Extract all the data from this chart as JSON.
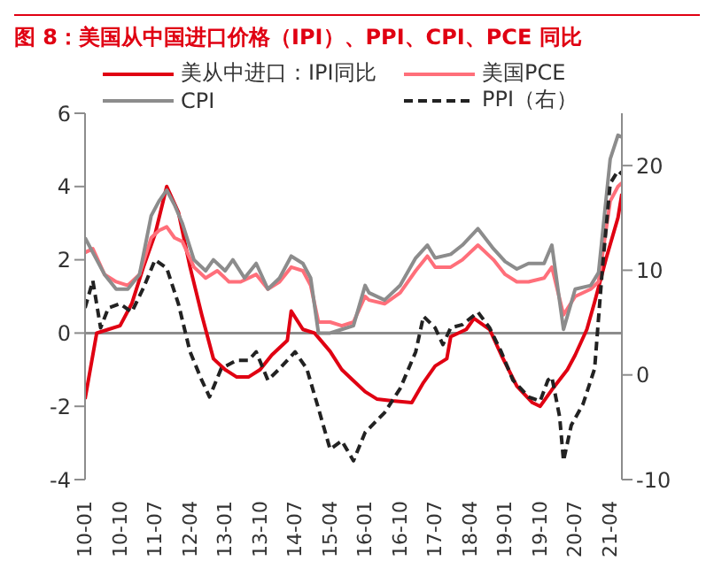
{
  "chart_data": {
    "type": "line",
    "title": "图 8：美国从中国进口价格（IPI）、PPI、CPI、PCE 同比",
    "xlim": [
      "2010-01",
      "2021-07"
    ],
    "xticks": [
      {
        "value": "2010-01",
        "label": "10-01"
      },
      {
        "value": "2010-10",
        "label": "10-10"
      },
      {
        "value": "2011-07",
        "label": "11-07"
      },
      {
        "value": "2012-04",
        "label": "12-04"
      },
      {
        "value": "2013-01",
        "label": "13-01"
      },
      {
        "value": "2013-10",
        "label": "13-10"
      },
      {
        "value": "2014-07",
        "label": "14-07"
      },
      {
        "value": "2015-04",
        "label": "15-04"
      },
      {
        "value": "2016-01",
        "label": "16-01"
      },
      {
        "value": "2016-10",
        "label": "16-10"
      },
      {
        "value": "2017-07",
        "label": "17-07"
      },
      {
        "value": "2018-04",
        "label": "18-04"
      },
      {
        "value": "2019-01",
        "label": "19-01"
      },
      {
        "value": "2019-10",
        "label": "19-10"
      },
      {
        "value": "2020-07",
        "label": "20-07"
      },
      {
        "value": "2021-04",
        "label": "21-04"
      }
    ],
    "ylim": [
      -4,
      6
    ],
    "yticks": [
      -4,
      -2,
      0,
      2,
      4,
      6
    ],
    "y2lim": [
      -10,
      25
    ],
    "y2ticks": [
      -10,
      0,
      10,
      20
    ],
    "legend": "top",
    "marker": "none",
    "ref_lines": [
      {
        "axis": "y",
        "value": 0,
        "color": "#8c8c8c"
      }
    ],
    "series": [
      {
        "name": "美从中进口：IPI同比",
        "color": "#e00012",
        "x": [
          "2010-01",
          "2010-04",
          "2010-07",
          "2010-10",
          "2011-01",
          "2011-04",
          "2011-07",
          "2011-10",
          "2012-01",
          "2012-04",
          "2012-07",
          "2012-10",
          "2013-01",
          "2013-04",
          "2013-07",
          "2013-10",
          "2014-01",
          "2014-05",
          "2014-06",
          "2014-09",
          "2014-12",
          "2015-04",
          "2015-07",
          "2015-10",
          "2016-01",
          "2016-04",
          "2016-08",
          "2017-01",
          "2017-04",
          "2017-07",
          "2017-10",
          "2017-11",
          "2018-03",
          "2018-05",
          "2018-09",
          "2018-12",
          "2019-04",
          "2019-08",
          "2019-10",
          "2020-01",
          "2020-05",
          "2020-07",
          "2020-10",
          "2020-12",
          "2021-03",
          "2021-06",
          "2021-07"
        ],
        "values": [
          -1.8,
          0.0,
          0.1,
          0.2,
          0.8,
          1.8,
          2.7,
          4.0,
          3.3,
          1.8,
          0.5,
          -0.7,
          -1.0,
          -1.2,
          -1.2,
          -1.0,
          -0.6,
          -0.2,
          0.6,
          0.1,
          0.0,
          -0.5,
          -1.0,
          -1.3,
          -1.6,
          -1.8,
          -1.85,
          -1.9,
          -1.35,
          -0.9,
          -0.7,
          -0.1,
          0.1,
          0.4,
          0.1,
          -0.6,
          -1.45,
          -1.9,
          -2.0,
          -1.55,
          -1.0,
          -0.6,
          0.1,
          0.85,
          2.05,
          3.15,
          3.8
        ]
      },
      {
        "name": "美国PCE",
        "color": "#ff6f7a",
        "x": [
          "2010-01",
          "2010-03",
          "2010-06",
          "2010-09",
          "2010-12",
          "2011-03",
          "2011-06",
          "2011-08",
          "2011-10",
          "2011-12",
          "2012-02",
          "2012-05",
          "2012-08",
          "2012-11",
          "2013-02",
          "2013-05",
          "2013-09",
          "2013-12",
          "2014-03",
          "2014-06",
          "2014-09",
          "2014-11",
          "2015-01",
          "2015-04",
          "2015-07",
          "2015-10",
          "2016-01",
          "2016-02",
          "2016-06",
          "2016-10",
          "2017-02",
          "2017-05",
          "2017-07",
          "2017-11",
          "2018-02",
          "2018-06",
          "2018-10",
          "2019-01",
          "2019-04",
          "2019-07",
          "2019-11",
          "2020-01",
          "2020-04",
          "2020-07",
          "2020-11",
          "2021-01",
          "2021-04",
          "2021-06",
          "2021-07"
        ],
        "values": [
          2.2,
          2.3,
          1.6,
          1.4,
          1.3,
          1.6,
          2.6,
          2.8,
          2.9,
          2.6,
          2.5,
          1.8,
          1.5,
          1.7,
          1.4,
          1.4,
          1.6,
          1.2,
          1.4,
          1.8,
          1.7,
          1.3,
          0.3,
          0.3,
          0.2,
          0.3,
          1.0,
          0.9,
          0.8,
          1.1,
          1.7,
          2.1,
          1.8,
          1.8,
          2.0,
          2.4,
          2.0,
          1.6,
          1.4,
          1.4,
          1.5,
          1.8,
          0.5,
          1.0,
          1.2,
          1.4,
          3.6,
          4.0,
          4.1
        ]
      },
      {
        "name": "CPI",
        "color": "#8c8c8c",
        "x": [
          "2010-01",
          "2010-03",
          "2010-06",
          "2010-09",
          "2010-12",
          "2011-03",
          "2011-06",
          "2011-08",
          "2011-10",
          "2011-12",
          "2012-02",
          "2012-05",
          "2012-08",
          "2012-10",
          "2013-01",
          "2013-03",
          "2013-06",
          "2013-09",
          "2013-12",
          "2014-03",
          "2014-06",
          "2014-09",
          "2014-11",
          "2015-01",
          "2015-04",
          "2015-07",
          "2015-10",
          "2016-01",
          "2016-02",
          "2016-06",
          "2016-10",
          "2017-02",
          "2017-05",
          "2017-07",
          "2017-11",
          "2018-02",
          "2018-06",
          "2018-10",
          "2019-01",
          "2019-04",
          "2019-07",
          "2019-11",
          "2020-01",
          "2020-04",
          "2020-07",
          "2020-11",
          "2021-01",
          "2021-04",
          "2021-06",
          "2021-07"
        ],
        "values": [
          2.6,
          2.2,
          1.6,
          1.2,
          1.2,
          1.6,
          3.2,
          3.6,
          3.9,
          3.5,
          3.0,
          2.0,
          1.7,
          2.0,
          1.7,
          2.0,
          1.5,
          1.9,
          1.2,
          1.5,
          2.1,
          1.9,
          1.5,
          0.0,
          0.0,
          0.1,
          0.2,
          1.3,
          1.1,
          0.9,
          1.3,
          2.05,
          2.4,
          2.05,
          2.15,
          2.4,
          2.85,
          2.3,
          1.95,
          1.75,
          1.9,
          1.9,
          2.4,
          0.1,
          1.2,
          1.3,
          1.65,
          4.75,
          5.4,
          5.35
        ]
      },
      {
        "name": "PPI（右）",
        "color": "#222222",
        "axis": "y2",
        "line_style": "dashed",
        "x": [
          "2010-01",
          "2010-03",
          "2010-05",
          "2010-07",
          "2010-10",
          "2011-01",
          "2011-04",
          "2011-07",
          "2011-10",
          "2012-01",
          "2012-04",
          "2012-07",
          "2012-09",
          "2012-12",
          "2013-04",
          "2013-07",
          "2013-09",
          "2013-12",
          "2014-03",
          "2014-07",
          "2014-10",
          "2015-01",
          "2015-04",
          "2015-07",
          "2015-10",
          "2016-01",
          "2016-06",
          "2016-10",
          "2017-02",
          "2017-04",
          "2017-07",
          "2017-09",
          "2017-11",
          "2018-02",
          "2018-06",
          "2018-09",
          "2018-12",
          "2019-03",
          "2019-07",
          "2019-10",
          "2019-12",
          "2020-01",
          "2020-03",
          "2020-04",
          "2020-06",
          "2020-09",
          "2020-12",
          "2021-02",
          "2021-04",
          "2021-06",
          "2021-07"
        ],
        "values": [
          6.4,
          9,
          4.5,
          6.4,
          6.8,
          6,
          8.3,
          11,
          10.2,
          6.8,
          2.2,
          -0.5,
          -2.1,
          0.6,
          1.4,
          1.4,
          2.2,
          -0.5,
          0.6,
          2.2,
          0.6,
          -3.2,
          -7.1,
          -6.3,
          -8.2,
          -5.5,
          -3.6,
          -1.3,
          2.2,
          5.6,
          4.5,
          2.9,
          4.5,
          4.8,
          6,
          4.5,
          2.2,
          -0.5,
          -2.1,
          -2.5,
          -0.5,
          -0.2,
          -4,
          -8.2,
          -4.8,
          -2.8,
          0.6,
          10.2,
          18.3,
          19.5,
          19.2
        ]
      }
    ]
  }
}
